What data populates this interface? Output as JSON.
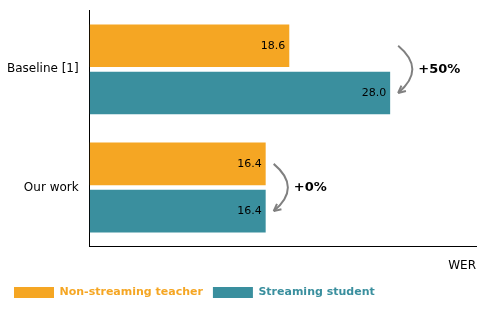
{
  "chart_data": {
    "type": "bar",
    "orientation": "horizontal",
    "categories": [
      "Baseline [1]",
      "Our work"
    ],
    "series": [
      {
        "name": "Non-streaming teacher",
        "color": "#F5A623",
        "values": [
          18.6,
          16.4
        ],
        "value_labels": [
          "18.6",
          "16.4"
        ]
      },
      {
        "name": "Streaming student",
        "color": "#3A8F9E",
        "values": [
          28.0,
          16.4
        ],
        "value_labels": [
          "28.0",
          "16.4"
        ]
      }
    ],
    "x_label": "WER",
    "xlim": [
      0,
      36
    ],
    "tick_labels": "y",
    "grid": false,
    "legend": "bottom",
    "data_labels": true,
    "annotations": [
      {
        "text": "+50%",
        "category": "Baseline [1]"
      },
      {
        "text": "+0%",
        "category": "Our work"
      }
    ]
  }
}
